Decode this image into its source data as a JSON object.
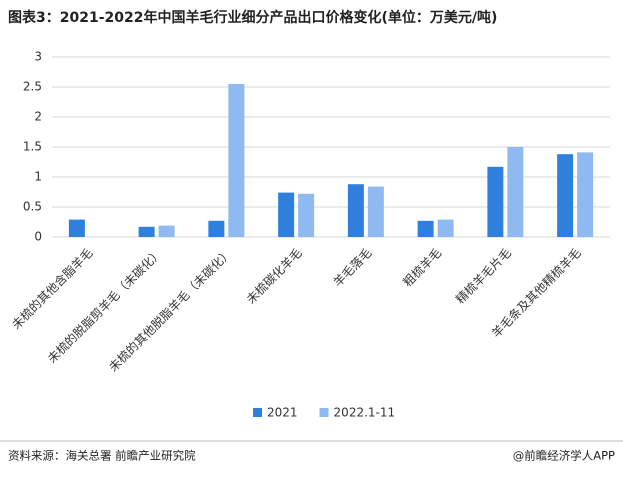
{
  "chart_data": {
    "type": "bar",
    "title": "图表3：2021-2022年中国羊毛行业细分产品出口价格变化(单位：万美元/吨)",
    "categories": [
      "未梳的其他含脂羊毛",
      "未梳的脱脂剪羊毛（未碳化）",
      "未梳的其他脱脂羊毛（未碳化）",
      "未梳碳化羊毛",
      "羊毛落毛",
      "粗梳羊毛",
      "精梳羊毛片毛",
      "羊毛条及其他精梳羊毛"
    ],
    "series": [
      {
        "name": "2021",
        "color": "#2f80dc",
        "values": [
          0.29,
          0.17,
          0.27,
          0.74,
          0.88,
          0.27,
          1.17,
          1.38
        ]
      },
      {
        "name": "2022.1-11",
        "color": "#8fb9f1",
        "values": [
          null,
          0.19,
          2.55,
          0.72,
          0.84,
          0.29,
          1.5,
          1.41
        ]
      }
    ],
    "ylim": [
      0,
      3
    ],
    "yticks": [
      0,
      0.5,
      1,
      1.5,
      2,
      2.5,
      3
    ],
    "grid": true,
    "legend": "bottom",
    "source": "资料来源：海关总署 前瞻产业研究院",
    "credit": "@前瞻经济学人APP"
  }
}
